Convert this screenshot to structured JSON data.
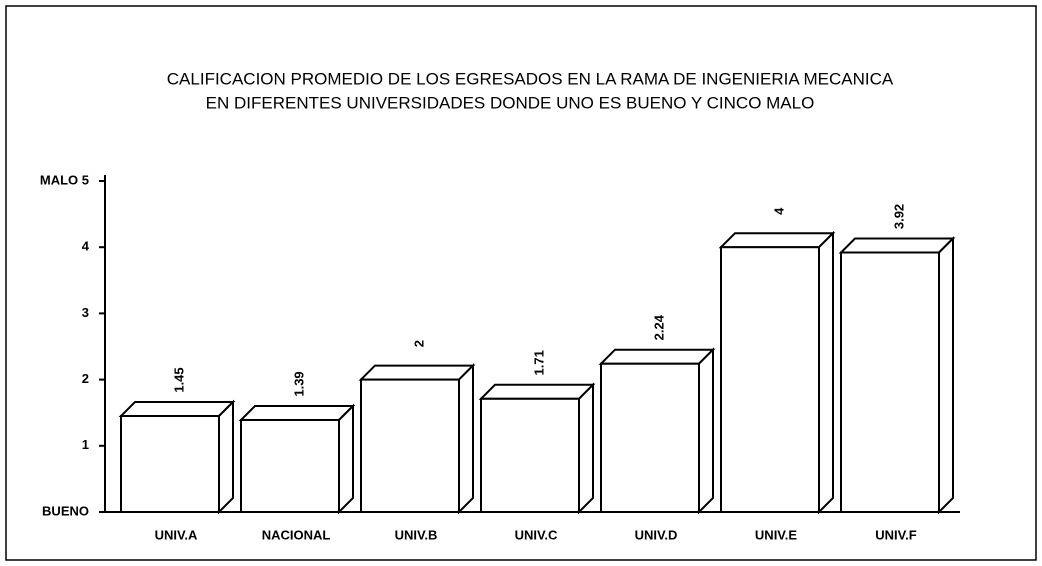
{
  "chart_data": {
    "type": "bar",
    "title": "CALIFICACION PROMEDIO DE LOS EGRESADOS EN LA RAMA DE INGENIERIA MECANICA",
    "subtitle": "EN DIFERENTES UNIVERSIDADES DONDE UNO ES BUENO Y CINCO MALO",
    "categories": [
      "UNIV.A",
      "NACIONAL",
      "UNIV.B",
      "UNIV.C",
      "UNIV.D",
      "UNIV.E",
      "UNIV.F"
    ],
    "values": [
      1.45,
      1.39,
      2,
      1.71,
      2.24,
      4,
      3.92
    ],
    "color": "#ffffff",
    "ylim": [
      0,
      5
    ],
    "yticks": [
      {
        "value": 0,
        "label": "BUENO"
      },
      1,
      2,
      3,
      4,
      {
        "value": 5,
        "label": "MALO 5"
      }
    ],
    "grid": false
  }
}
